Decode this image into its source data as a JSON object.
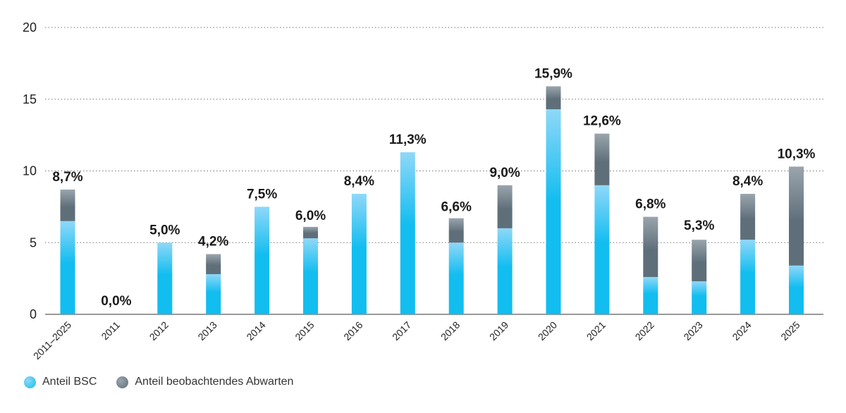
{
  "chart_data": {
    "type": "bar",
    "stacked": true,
    "categories": [
      "2011–2025",
      "2011",
      "2012",
      "2013",
      "2014",
      "2015",
      "2016",
      "2017",
      "2018",
      "2019",
      "2020",
      "2021",
      "2022",
      "2023",
      "2024",
      "2025"
    ],
    "series": [
      {
        "name": "Anteil BSC",
        "color": "#12bdf0",
        "color_light": "#8fd8f8",
        "values": [
          6.5,
          0,
          5.0,
          2.8,
          7.5,
          5.3,
          8.4,
          11.3,
          5.0,
          6.0,
          14.3,
          9.0,
          2.6,
          2.3,
          5.2,
          3.4
        ]
      },
      {
        "name": "Anteil beobachtendes Abwarten",
        "color": "#5f6f7a",
        "color_light": "#9aa5ad",
        "values": [
          2.2,
          0,
          0,
          1.4,
          0,
          0.8,
          0,
          0,
          1.7,
          3.0,
          1.6,
          3.6,
          4.2,
          2.9,
          3.2,
          6.9
        ]
      }
    ],
    "data_labels": [
      "8,7%",
      "0,0%",
      "5,0%",
      "4,2%",
      "7,5%",
      "6,0%",
      "8,4%",
      "11,3%",
      "6,6%",
      "9,0%",
      "15,9%",
      "12,6%",
      "6,8%",
      "5,3%",
      "8,4%",
      "10,3%"
    ],
    "totals": [
      8.7,
      0,
      5.0,
      4.2,
      7.5,
      6.0,
      8.4,
      11.3,
      6.6,
      9.0,
      15.9,
      12.6,
      6.8,
      5.3,
      8.4,
      10.3
    ],
    "yticks": [
      "0",
      "5",
      "10",
      "15",
      "20"
    ],
    "ylim": [
      0,
      20
    ],
    "grid": "horizontal dotted",
    "legend_position": "bottom-left"
  },
  "legend": {
    "items": [
      {
        "label": "Anteil BSC",
        "color": "#12bdf0"
      },
      {
        "label": "Anteil beobachtendes Abwarten",
        "color": "#5f6f7a"
      }
    ]
  }
}
